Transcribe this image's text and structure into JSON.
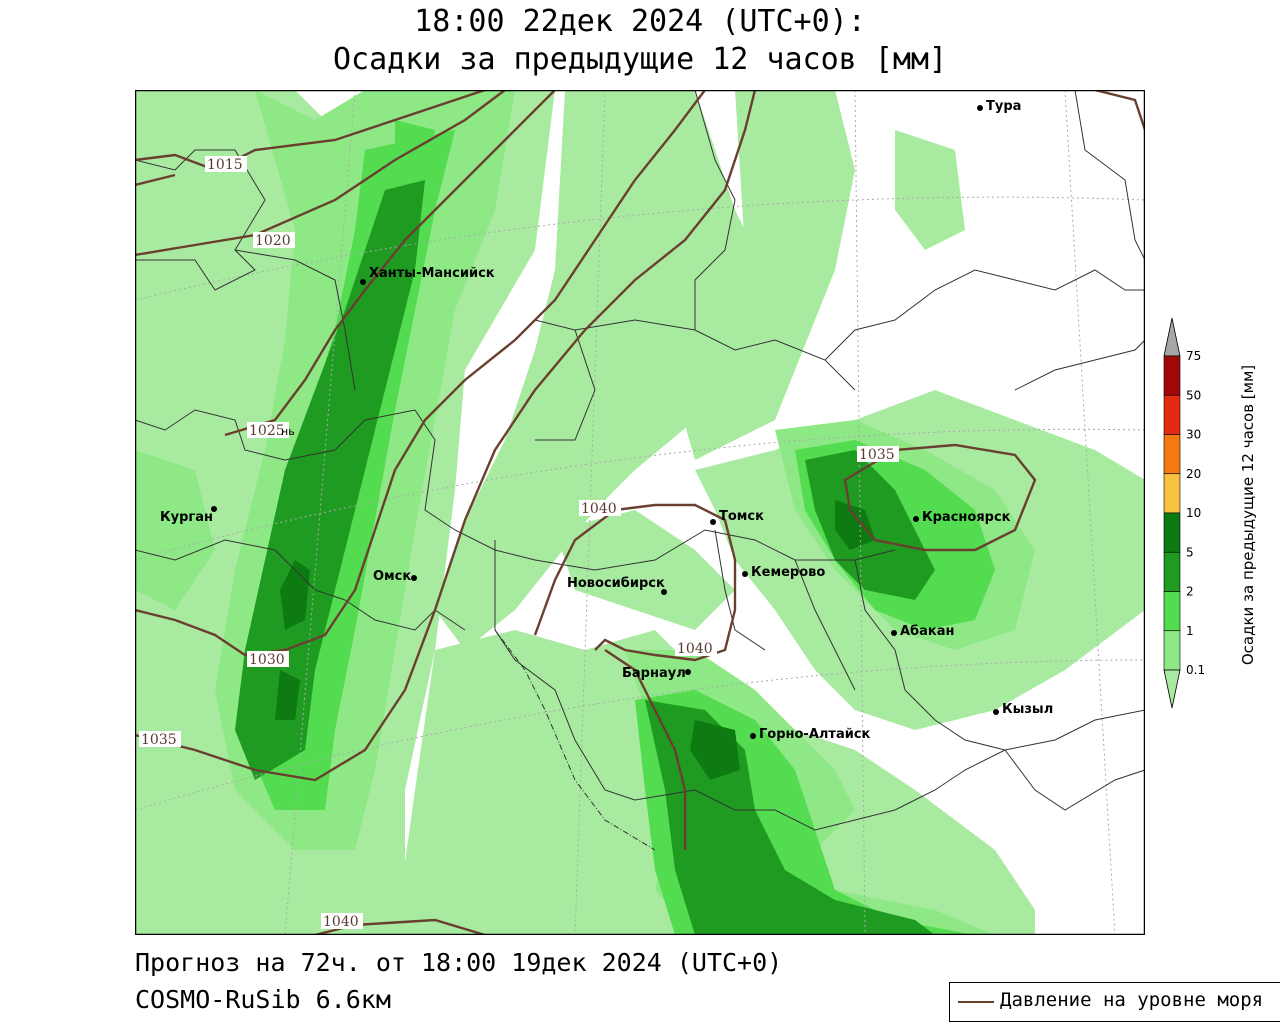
{
  "title": {
    "line1": "18:00 22дек 2024 (UTC+0):",
    "line2": "Осадки за предыдущие 12 часов [мм]"
  },
  "footer": {
    "forecast": "Прогноз на 72ч. от 18:00 19дек 2024 (UTC+0)",
    "model": "COSMO-RuSib 6.6км"
  },
  "legend": {
    "pressure_label": "Давление на уровне моря"
  },
  "colorbar": {
    "title": "Осадки за предыдущие 12 часов [мм]",
    "levels": [
      "0.1",
      "1",
      "2",
      "5",
      "10",
      "20",
      "30",
      "50",
      "75"
    ],
    "colors": [
      "#a8eba0",
      "#8de885",
      "#53dc4f",
      "#1f9b22",
      "#0d7a12",
      "#f7c23e",
      "#f57a12",
      "#e32b12",
      "#bf0e0e",
      "#a00808",
      "#a6a6a6"
    ]
  },
  "cities": [
    {
      "name": "Тура"
    },
    {
      "name": "Ханты-Мансийск"
    },
    {
      "name": "Курган"
    },
    {
      "name": "Омск"
    },
    {
      "name": "Новосибирск"
    },
    {
      "name": "Томск"
    },
    {
      "name": "Кемерово"
    },
    {
      "name": "Красноярск"
    },
    {
      "name": "Абакан"
    },
    {
      "name": "Барнаул"
    },
    {
      "name": "Горно-Алтайск"
    },
    {
      "name": "Кызыл"
    }
  ],
  "isobars": [
    "1015",
    "1020",
    "1025",
    "1030",
    "1035",
    "1040",
    "1040",
    "1040",
    "1035"
  ],
  "partial_labels": [
    "нь"
  ]
}
